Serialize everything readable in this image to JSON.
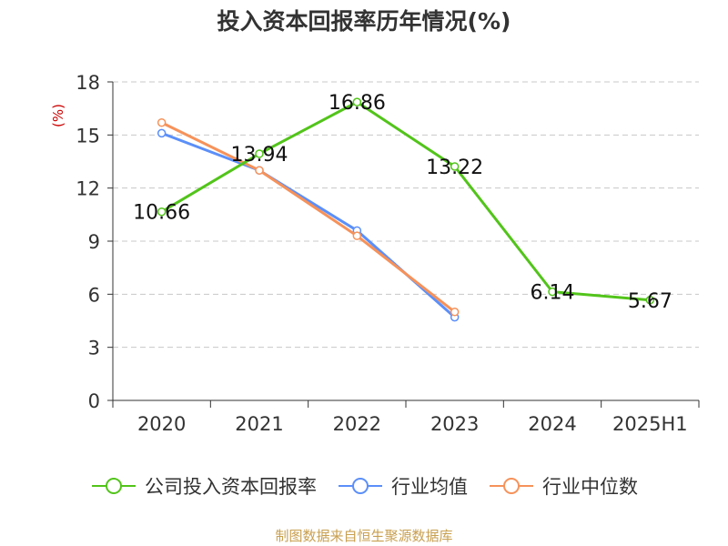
{
  "chart_data": {
    "type": "line",
    "title": "投入资本回报率历年情况(%)",
    "ylabel": "(%)",
    "categories": [
      "2020",
      "2021",
      "2022",
      "2023",
      "2024",
      "2025H1"
    ],
    "ylim": [
      0,
      18
    ],
    "yticks": [
      0,
      3,
      6,
      9,
      12,
      15,
      18
    ],
    "grid": true,
    "legend_position": "bottom",
    "series": [
      {
        "name": "公司投入资本回报率",
        "color": "#52c41a",
        "values": [
          10.66,
          13.94,
          16.86,
          13.22,
          6.14,
          5.67
        ],
        "labels": [
          "10.66",
          "13.94",
          "16.86",
          "13.22",
          "6.14",
          "5.67"
        ]
      },
      {
        "name": "行业均值",
        "color": "#5b8ff9",
        "values": [
          15.1,
          13.0,
          9.6,
          4.7,
          null,
          null
        ]
      },
      {
        "name": "行业中位数",
        "color": "#f6925a",
        "values": [
          15.7,
          13.0,
          9.3,
          5.0,
          null,
          null
        ]
      }
    ]
  },
  "ylabel_color": "#cc0000",
  "footer": {
    "text": "制图数据来自恒生聚源数据库",
    "color": "#c8a050"
  }
}
